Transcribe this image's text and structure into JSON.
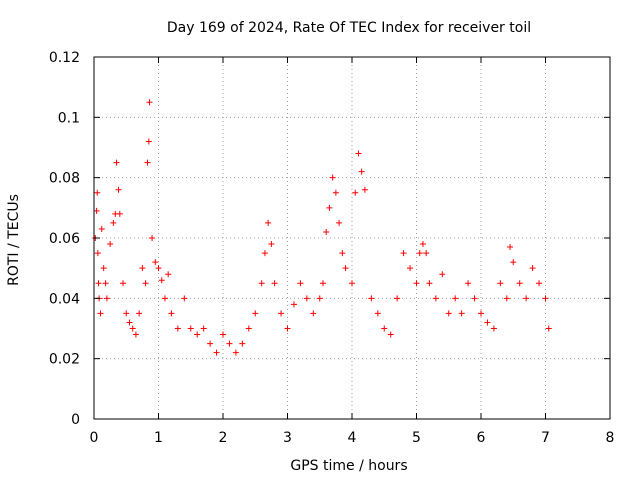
{
  "chart_data": {
    "type": "scatter",
    "title": "Day 169 of 2024, Rate Of TEC Index for receiver toil",
    "xlabel": "GPS time / hours",
    "ylabel": "ROTI / TECUs",
    "xlim": [
      0,
      8
    ],
    "ylim": [
      0,
      0.12
    ],
    "xticks": [
      0,
      1,
      2,
      3,
      4,
      5,
      6,
      7,
      8
    ],
    "xtick_labels": [
      "0",
      "1",
      "2",
      "3",
      "4",
      "5",
      "6",
      "7",
      "8"
    ],
    "yticks": [
      0,
      0.02,
      0.04,
      0.06,
      0.08,
      0.1,
      0.12
    ],
    "ytick_labels": [
      "0",
      "0.02",
      "0.04",
      "0.06",
      "0.08",
      "0.1",
      "0.12"
    ],
    "grid": true,
    "marker": "+",
    "series": [
      {
        "name": "ROTI",
        "color": "#ff0000",
        "x": [
          0.02,
          0.04,
          0.05,
          0.06,
          0.07,
          0.08,
          0.1,
          0.12,
          0.15,
          0.18,
          0.2,
          0.25,
          0.3,
          0.33,
          0.35,
          0.38,
          0.4,
          0.45,
          0.5,
          0.55,
          0.6,
          0.65,
          0.7,
          0.75,
          0.8,
          0.83,
          0.85,
          0.86,
          0.9,
          0.95,
          1.0,
          1.05,
          1.1,
          1.15,
          1.2,
          1.3,
          1.4,
          1.5,
          1.6,
          1.7,
          1.8,
          1.9,
          2.0,
          2.1,
          2.2,
          2.3,
          2.4,
          2.5,
          2.6,
          2.65,
          2.7,
          2.75,
          2.8,
          2.9,
          3.0,
          3.1,
          3.2,
          3.3,
          3.4,
          3.5,
          3.55,
          3.6,
          3.65,
          3.7,
          3.75,
          3.8,
          3.85,
          3.9,
          4.0,
          4.05,
          4.1,
          4.15,
          4.2,
          4.3,
          4.4,
          4.5,
          4.6,
          4.7,
          4.8,
          4.9,
          5.0,
          5.05,
          5.1,
          5.15,
          5.2,
          5.3,
          5.4,
          5.5,
          5.6,
          5.7,
          5.8,
          5.9,
          6.0,
          6.1,
          6.2,
          6.3,
          6.4,
          6.45,
          6.5,
          6.6,
          6.7,
          6.8,
          6.9,
          7.0,
          7.05
        ],
        "y": [
          0.06,
          0.069,
          0.075,
          0.055,
          0.045,
          0.04,
          0.035,
          0.063,
          0.05,
          0.045,
          0.04,
          0.058,
          0.065,
          0.068,
          0.085,
          0.076,
          0.068,
          0.045,
          0.035,
          0.032,
          0.03,
          0.028,
          0.035,
          0.05,
          0.045,
          0.085,
          0.092,
          0.105,
          0.06,
          0.052,
          0.05,
          0.046,
          0.04,
          0.048,
          0.035,
          0.03,
          0.04,
          0.03,
          0.028,
          0.03,
          0.025,
          0.022,
          0.028,
          0.025,
          0.022,
          0.025,
          0.03,
          0.035,
          0.045,
          0.055,
          0.065,
          0.058,
          0.045,
          0.035,
          0.03,
          0.038,
          0.045,
          0.04,
          0.035,
          0.04,
          0.045,
          0.062,
          0.07,
          0.08,
          0.075,
          0.065,
          0.055,
          0.05,
          0.045,
          0.075,
          0.088,
          0.082,
          0.076,
          0.04,
          0.035,
          0.03,
          0.028,
          0.04,
          0.055,
          0.05,
          0.045,
          0.055,
          0.058,
          0.055,
          0.045,
          0.04,
          0.048,
          0.035,
          0.04,
          0.035,
          0.045,
          0.04,
          0.035,
          0.032,
          0.03,
          0.045,
          0.04,
          0.057,
          0.052,
          0.045,
          0.04,
          0.05,
          0.045,
          0.04,
          0.03
        ]
      }
    ]
  }
}
